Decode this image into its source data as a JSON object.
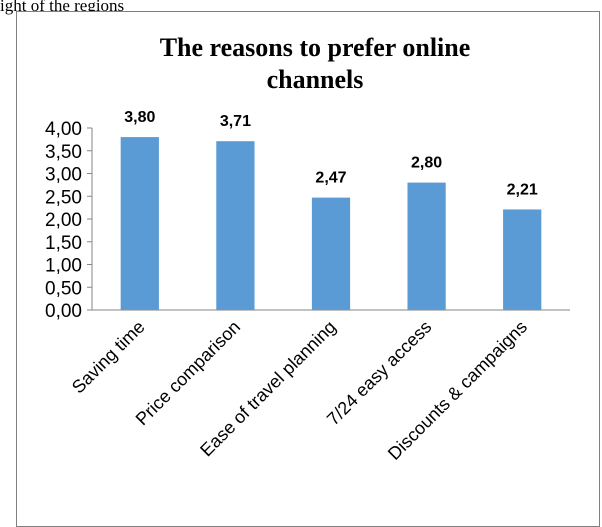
{
  "page_top_text": "ight of the regions",
  "chart_data": {
    "type": "bar",
    "title": [
      "The reasons to prefer online",
      "channels"
    ],
    "categories": [
      "Saving time",
      "Price comparison",
      "Ease of travel planning",
      "7/24 easy access",
      "Discounts & campaigns"
    ],
    "values": [
      3.8,
      3.71,
      2.47,
      2.8,
      2.21
    ],
    "value_labels": [
      "3,80",
      "3,71",
      "2,47",
      "2,80",
      "2,21"
    ],
    "ylim": [
      0,
      4
    ],
    "yticks": [
      0,
      0.5,
      1,
      1.5,
      2,
      2.5,
      3,
      3.5,
      4
    ],
    "ytick_labels": [
      "0,00",
      "0,50",
      "1,00",
      "1,50",
      "2,00",
      "2,50",
      "3,00",
      "3,50",
      "4,00"
    ],
    "xlabel": "",
    "ylabel": "",
    "grid": false,
    "bar_color": "#5b9bd5"
  }
}
